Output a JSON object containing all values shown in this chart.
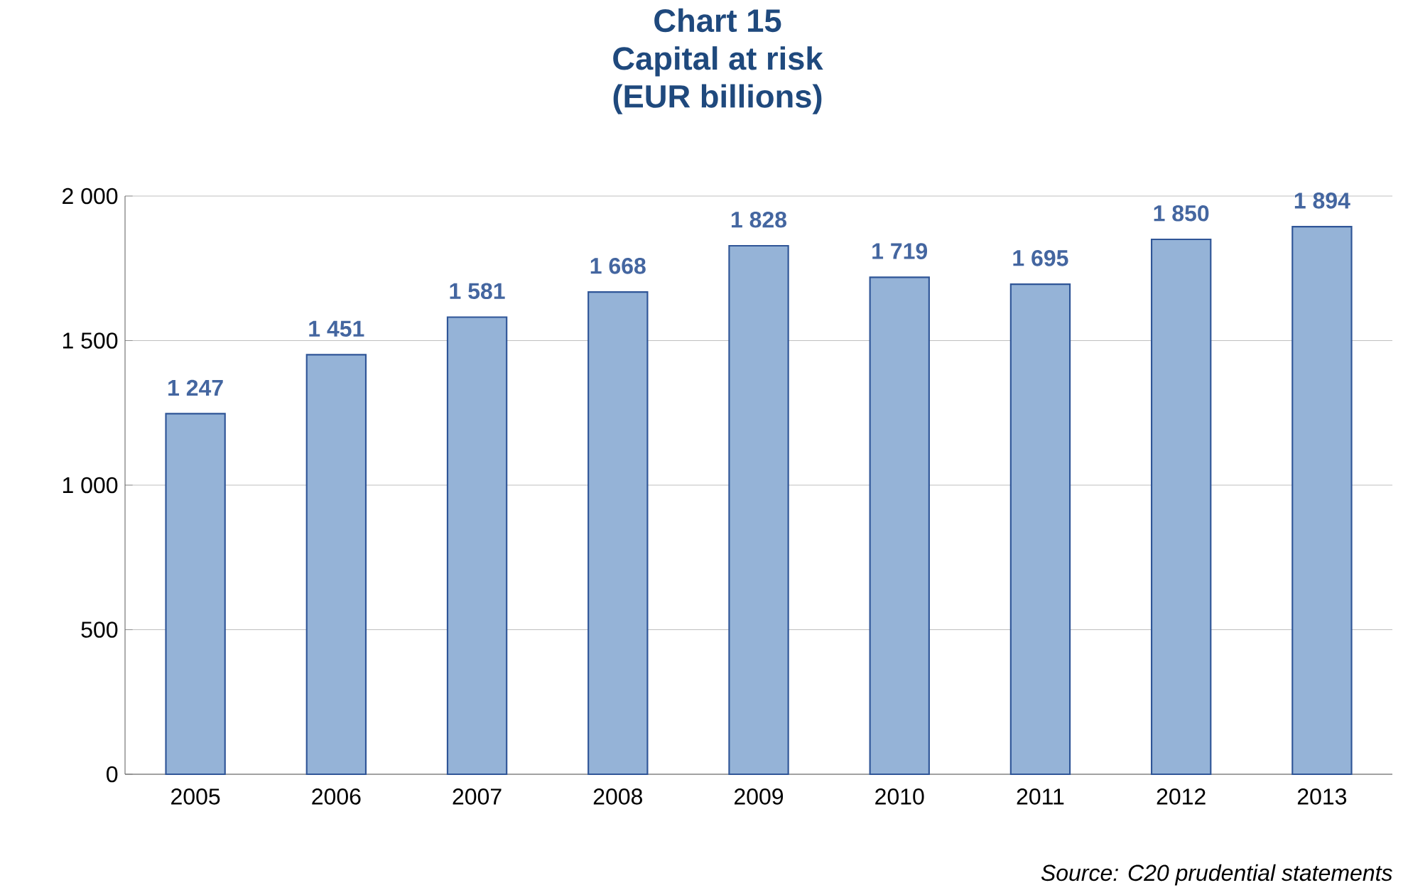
{
  "chart_data": {
    "type": "bar",
    "title": "Chart 15\nCapital at risk\n(EUR billions)",
    "categories": [
      "2005",
      "2006",
      "2007",
      "2008",
      "2009",
      "2010",
      "2011",
      "2012",
      "2013"
    ],
    "values": [
      1247,
      1451,
      1581,
      1668,
      1828,
      1719,
      1695,
      1850,
      1894
    ],
    "value_labels": [
      "1 247",
      "1 451",
      "1 581",
      "1 668",
      "1 828",
      "1 719",
      "1 695",
      "1 850",
      "1 894"
    ],
    "color": "#95b3d7",
    "ylim": [
      0,
      2000
    ],
    "yticks": [
      0,
      500,
      {
        "value": 1000,
        "label": "1 000"
      },
      {
        "value": 1500,
        "label": "1 500"
      },
      {
        "value": 2000,
        "label": "2 000"
      }
    ],
    "grid": "y",
    "annotations": [
      "Source: C20 prudential statements"
    ]
  }
}
